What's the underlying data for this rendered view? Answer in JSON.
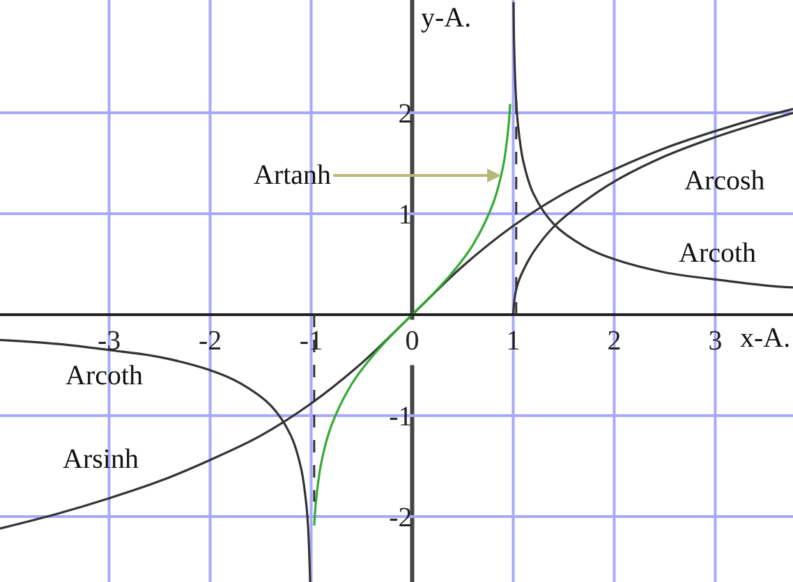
{
  "chart_data": {
    "type": "line",
    "xlabel": "x-A.",
    "ylabel": "y-A.",
    "xlim": [
      -4.08,
      3.77
    ],
    "ylim": [
      -2.65,
      3.12
    ],
    "xticks": [
      -3,
      -2,
      -1,
      0,
      1,
      2,
      3
    ],
    "yticks": [
      -2,
      -1,
      1,
      2
    ],
    "grid": true,
    "legend": false,
    "line_style": "solid",
    "series": [
      {
        "color": "#333333",
        "x": [
          -4.08,
          -3.5,
          -3,
          -2.5,
          -2,
          -1.5,
          -1,
          -0.5,
          0,
          0.5,
          1,
          1.5,
          2,
          2.5,
          3,
          3.5,
          3.77
        ],
        "values": [
          -2.12,
          -1.97,
          -1.82,
          -1.65,
          -1.44,
          -1.2,
          -0.88,
          -0.48,
          0,
          0.48,
          0.88,
          1.2,
          1.44,
          1.65,
          1.82,
          1.97,
          2.04
        ]
      },
      {
        "color": "#333333",
        "x": [
          1,
          1.02,
          1.05,
          1.1,
          1.2,
          1.4,
          1.7,
          2,
          2.5,
          3,
          3.5,
          3.77
        ],
        "values": [
          0,
          0.2,
          0.32,
          0.44,
          0.62,
          0.87,
          1.12,
          1.32,
          1.57,
          1.76,
          1.92,
          2.0
        ]
      },
      {
        "color": "#333333",
        "x": [
          1.004,
          1.01,
          1.03,
          1.05,
          1.1,
          1.2,
          1.4,
          1.7,
          2,
          2.5,
          3,
          3.5,
          3.77
        ],
        "values": [
          3.1,
          2.65,
          2.11,
          1.86,
          1.52,
          1.2,
          0.9,
          0.68,
          0.55,
          0.42,
          0.35,
          0.29,
          0.27
        ]
      },
      {
        "color": "#333333",
        "x": [
          -4.08,
          -3.5,
          -3,
          -2.5,
          -2,
          -1.7,
          -1.4,
          -1.2,
          -1.1,
          -1.05,
          -1.03,
          -1.01
        ],
        "values": [
          -0.25,
          -0.29,
          -0.35,
          -0.42,
          -0.55,
          -0.68,
          -0.9,
          -1.2,
          -1.52,
          -1.86,
          -2.11,
          -2.65
        ]
      },
      {
        "color": "#33aa33",
        "x": [
          -0.97,
          -0.95,
          -0.9,
          -0.8,
          -0.6,
          -0.4,
          -0.2,
          0,
          0.2,
          0.4,
          0.6,
          0.8,
          0.9,
          0.95,
          0.97
        ],
        "values": [
          -2.09,
          -1.83,
          -1.47,
          -1.1,
          -0.69,
          -0.42,
          -0.2,
          0,
          0.2,
          0.42,
          0.69,
          1.1,
          1.47,
          1.83,
          2.09
        ]
      }
    ],
    "ref_lines": [
      {
        "axis": "x",
        "value": -1,
        "line_style": "dashed",
        "color": "#333333"
      },
      {
        "axis": "x",
        "value": 1,
        "line_style": "dashed",
        "color": "#333333"
      }
    ],
    "annotations": [
      "Arcoth",
      "Arsinh",
      "Arcosh",
      "Arcoth",
      {
        "text": "Artanh",
        "x": 0.88,
        "y": 1.38
      }
    ]
  }
}
